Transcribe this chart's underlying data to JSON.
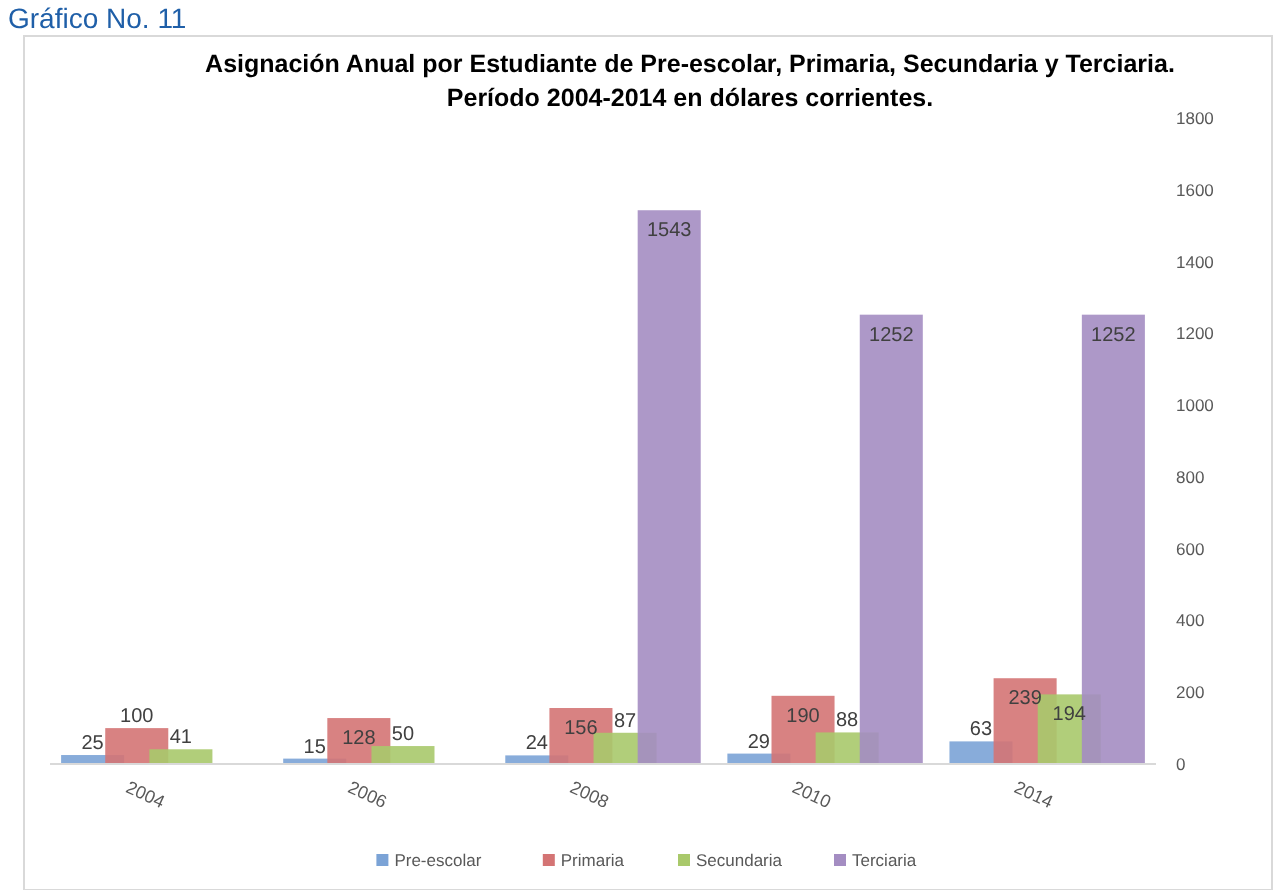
{
  "chart_data": {
    "type": "bar",
    "title": "Asignación Anual por Estudiante de Pre-escolar, Primaria, Secundaria y Terciaria.",
    "subtitle": "Período 2004-2014 en dólares corrientes.",
    "annotations": [
      "Gráfico No. 11"
    ],
    "categories": [
      "2004",
      "2006",
      "2008",
      "2010",
      "2014"
    ],
    "series": [
      {
        "name": "Pre-escolar",
        "color": "#7ba3d6",
        "values": [
          25,
          15,
          24,
          29,
          63
        ]
      },
      {
        "name": "Primaria",
        "color": "#d47474",
        "values": [
          100,
          128,
          156,
          190,
          239
        ]
      },
      {
        "name": "Secundaria",
        "color": "#a9c96b",
        "values": [
          41,
          50,
          87,
          88,
          194
        ]
      },
      {
        "name": "Terciaria",
        "color": "#a48dc2",
        "values": [
          null,
          null,
          1543,
          1252,
          1252
        ]
      }
    ],
    "ylim": [
      0,
      1800
    ],
    "yticks": [
      0,
      200,
      400,
      600,
      800,
      1000,
      1200,
      1400,
      1600,
      1800
    ],
    "grid": false,
    "legend": "bottom",
    "data_labels": true
  }
}
